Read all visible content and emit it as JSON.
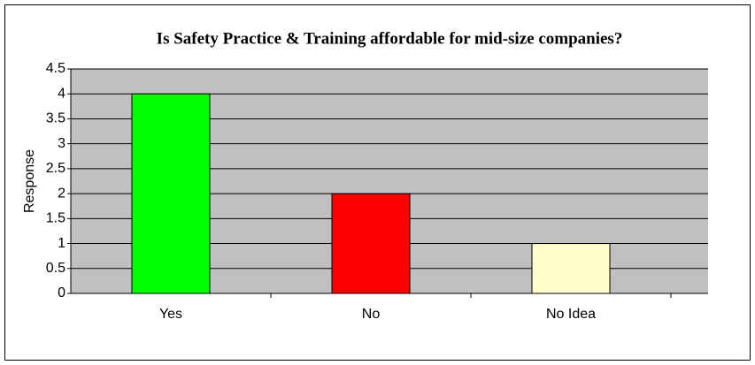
{
  "chart_data": {
    "type": "bar",
    "title": "Is Safety Practice & Training affordable for mid-size companies?",
    "y_label": "Response",
    "categories": [
      "Yes",
      "No",
      "No Idea"
    ],
    "values": [
      4,
      2,
      1
    ],
    "colors": [
      "#00ff00",
      "#ff0000",
      "#ffffcc"
    ],
    "ylim": [
      0,
      4.5
    ],
    "yticks": [
      0,
      0.5,
      1,
      1.5,
      2,
      2.5,
      3,
      3.5,
      4,
      4.5
    ],
    "grid": true
  }
}
